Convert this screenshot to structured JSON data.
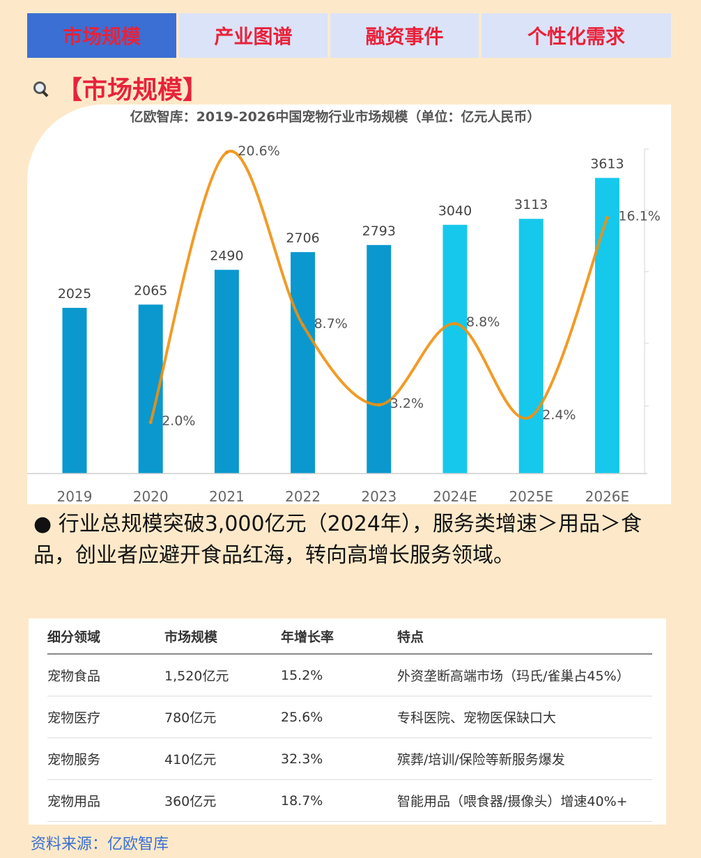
{
  "tabs": [
    {
      "label": "市场规模",
      "active": true
    },
    {
      "label": "产业图谱",
      "active": false
    },
    {
      "label": "融资事件",
      "active": false
    },
    {
      "label": "个性化需求",
      "active": false
    }
  ],
  "section": {
    "title": "【市场规模】",
    "icon": "magnifier-icon"
  },
  "chart_data": {
    "type": "bar",
    "title": "亿欧智库：2019-2026中国宠物行业市场规模（单位：亿元人民币）",
    "categories": [
      "2019",
      "2020",
      "2021",
      "2022",
      "2023",
      "2024E",
      "2025E",
      "2026E"
    ],
    "series": [
      {
        "type": "bar",
        "values": [
          2025,
          2065,
          2490,
          2706,
          2793,
          3040,
          3113,
          3613
        ],
        "labels": [
          "2025",
          "2065",
          "2490",
          "2706",
          "2793",
          "3040",
          "3113",
          "3613"
        ]
      },
      {
        "type": "line",
        "values": [
          null,
          2.0,
          20.6,
          8.7,
          3.2,
          8.8,
          2.4,
          16.1
        ],
        "labels": [
          "",
          "2.0%",
          "20.6%",
          "8.7%",
          "3.2%",
          "8.8%",
          "2.4%",
          "16.1%"
        ]
      }
    ],
    "ylim": [
      0,
      4000
    ],
    "y2lim": [
      0,
      24
    ],
    "colors": {
      "bar_actual": "#0a98cf",
      "bar_estimate": "#16c8ec",
      "line": "#f0900e"
    }
  },
  "bullet": "● 行业总规模突破3,000亿元（2024年），服务类增速＞用品＞食品，创业者应避开食品红海，转向高增长服务领域。",
  "table": {
    "headers": [
      "细分领域",
      "市场规模",
      "年增长率",
      "特点"
    ],
    "rows": [
      [
        "宠物食品",
        "1,520亿元",
        "15.2%",
        "外资垄断高端市场（玛氏/雀巢占45%）"
      ],
      [
        "宠物医疗",
        "780亿元",
        "25.6%",
        "专科医院、宠物医保缺口大"
      ],
      [
        "宠物服务",
        "410亿元",
        "32.3%",
        "殡葬/培训/保险等新服务爆发"
      ],
      [
        "宠物用品",
        "360亿元",
        "18.7%",
        "智能用品（喂食器/摄像头）增速40%+"
      ]
    ]
  },
  "source": "资料来源：亿欧智库"
}
